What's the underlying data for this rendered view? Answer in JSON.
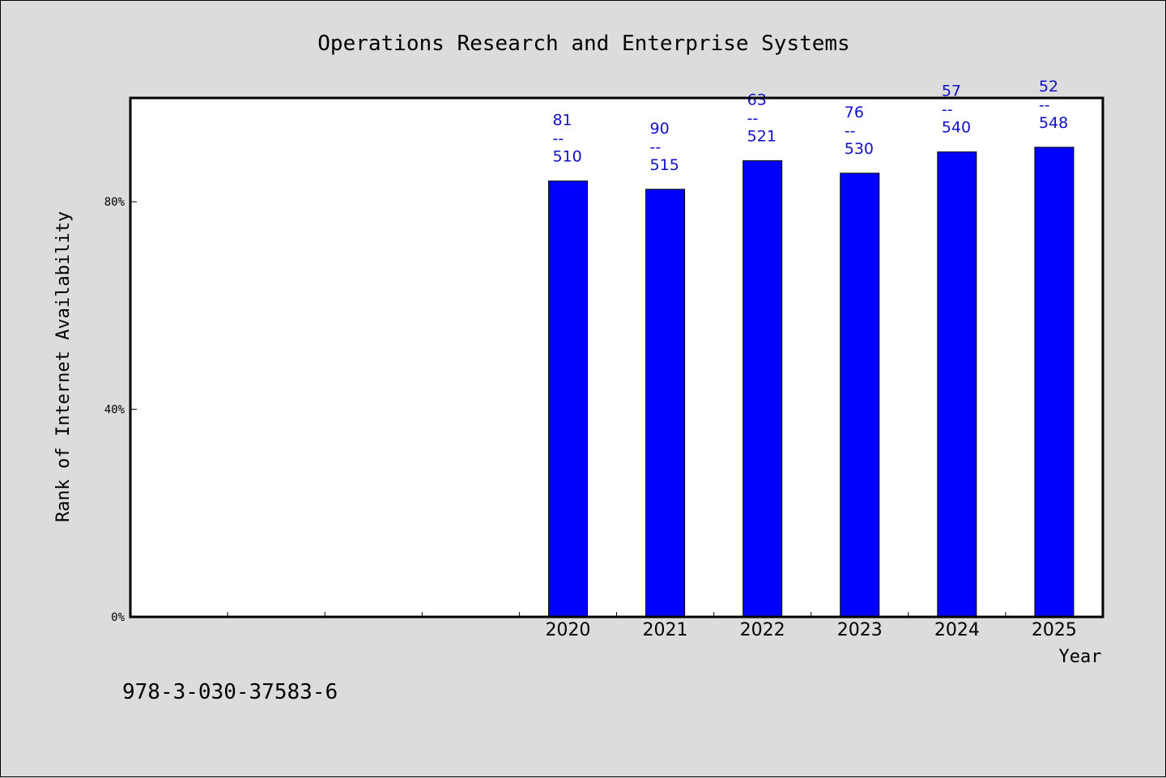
{
  "chart_data": {
    "type": "bar",
    "title": "Operations Research and Enterprise Systems",
    "xlabel": "Year",
    "ylabel": "Rank of Internet Availability",
    "categories": [
      "2020",
      "2021",
      "2022",
      "2023",
      "2024",
      "2025"
    ],
    "values": [
      0.84,
      0.824,
      0.879,
      0.855,
      0.896,
      0.905
    ],
    "data_labels": [
      {
        "top": "81",
        "sep": "--",
        "bottom": "510"
      },
      {
        "top": "90",
        "sep": "--",
        "bottom": "515"
      },
      {
        "top": "63",
        "sep": "--",
        "bottom": "521"
      },
      {
        "top": "76",
        "sep": "--",
        "bottom": "530"
      },
      {
        "top": "57",
        "sep": "--",
        "bottom": "540"
      },
      {
        "top": "52",
        "sep": "--",
        "bottom": "548"
      }
    ],
    "yticks": [
      {
        "value": 0,
        "label": "0%"
      },
      {
        "value": 0.4,
        "label": "40%"
      },
      {
        "value": 0.8,
        "label": "80%"
      }
    ],
    "ylim": [
      0,
      1.0
    ],
    "x_slots": 10,
    "first_category_slot": 4,
    "grid": false,
    "bar_color": "#0000ff",
    "label_color": "#1010c8"
  },
  "footer": {
    "isbn": "978-3-030-37583-6"
  }
}
